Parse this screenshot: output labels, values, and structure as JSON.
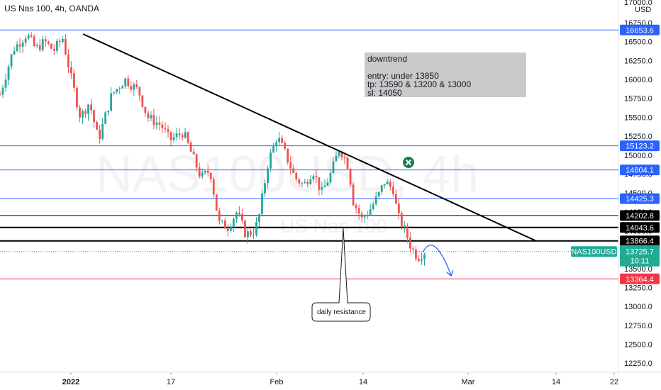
{
  "header": {
    "title": "US Nas 100, 4h, OANDA"
  },
  "watermark": {
    "symbol": "NAS100USD, 4h",
    "name": "US Nas 100"
  },
  "chart_data": {
    "type": "candlestick",
    "y_axis": {
      "currency": "USD",
      "range": [
        12130,
        17050
      ],
      "ticks": [
        "17000.0",
        "16750.0",
        "16500.0",
        "16250.0",
        "16000.0",
        "15750.0",
        "15500.0",
        "15250.0",
        "15000.0",
        "14750.0",
        "14500.0",
        "14250.0",
        "14000.0",
        "13750.0",
        "13500.0",
        "13250.0",
        "13000.0",
        "12750.0",
        "12500.0",
        "12250.0"
      ]
    },
    "x_axis": {
      "ticks": [
        "2022",
        "17",
        "Feb",
        "14",
        "Mar",
        "14",
        "22"
      ]
    },
    "price_levels": [
      {
        "label": "16653.6",
        "value": 16653.6,
        "style": "blue"
      },
      {
        "label": "15123.2",
        "value": 15123.2,
        "style": "blue"
      },
      {
        "label": "14804.1",
        "value": 14804.1,
        "style": "blue"
      },
      {
        "label": "14425.3",
        "value": 14425.3,
        "style": "blue"
      },
      {
        "label": "14202.8",
        "value": 14202.8,
        "style": "black"
      },
      {
        "label": "14043.6",
        "value": 14043.6,
        "style": "black-thick"
      },
      {
        "label": "13866.4",
        "value": 13866.4,
        "style": "black-thick"
      },
      {
        "label": "13364.4",
        "value": 13364.4,
        "style": "red"
      }
    ],
    "current": {
      "symbol": "NAS100USD",
      "price": "13725.7",
      "countdown": "10:11",
      "value": 13725.7
    },
    "trendline": {
      "from": {
        "x": 0.186,
        "y": 16600
      },
      "to": {
        "x": 1.2,
        "y": 13866
      }
    },
    "series_path": [
      [
        0.0,
        15800
      ],
      [
        0.03,
        16400
      ],
      [
        0.06,
        16600
      ],
      [
        0.08,
        16400
      ],
      [
        0.1,
        16500
      ],
      [
        0.12,
        16380
      ],
      [
        0.14,
        16550
      ],
      [
        0.16,
        16000
      ],
      [
        0.18,
        15500
      ],
      [
        0.2,
        15700
      ],
      [
        0.22,
        15200
      ],
      [
        0.25,
        15800
      ],
      [
        0.28,
        16000
      ],
      [
        0.31,
        15850
      ],
      [
        0.33,
        15500
      ],
      [
        0.36,
        15400
      ],
      [
        0.38,
        15200
      ],
      [
        0.41,
        15300
      ],
      [
        0.43,
        15000
      ],
      [
        0.45,
        14700
      ],
      [
        0.47,
        14800
      ],
      [
        0.49,
        14100
      ],
      [
        0.51,
        14050
      ],
      [
        0.53,
        14250
      ],
      [
        0.55,
        13950
      ],
      [
        0.57,
        14000
      ],
      [
        0.58,
        14200
      ],
      [
        0.6,
        14900
      ],
      [
        0.62,
        15250
      ],
      [
        0.64,
        15000
      ],
      [
        0.66,
        14700
      ],
      [
        0.68,
        14600
      ],
      [
        0.7,
        14800
      ],
      [
        0.72,
        14500
      ],
      [
        0.74,
        14750
      ],
      [
        0.76,
        15100
      ],
      [
        0.78,
        14850
      ],
      [
        0.79,
        14400
      ],
      [
        0.81,
        14150
      ],
      [
        0.83,
        14300
      ],
      [
        0.85,
        14500
      ],
      [
        0.86,
        14650
      ],
      [
        0.88,
        14550
      ],
      [
        0.89,
        14200
      ],
      [
        0.91,
        13950
      ],
      [
        0.92,
        13780
      ],
      [
        0.935,
        13650
      ],
      [
        0.95,
        13725
      ]
    ]
  },
  "annotations": {
    "note": {
      "lines": [
        "downtrend",
        "",
        "entry: under 13850",
        "tp: 13590 & 13200 & 13000",
        "sl: 14050"
      ]
    },
    "callout": {
      "text": "daily resistance"
    }
  },
  "colors": {
    "up": "#26a69a",
    "down": "#ef5350",
    "blue_line": "#2962ff",
    "red_line": "#f23645",
    "black_line": "#000000",
    "current_tag": "#22ab94"
  }
}
